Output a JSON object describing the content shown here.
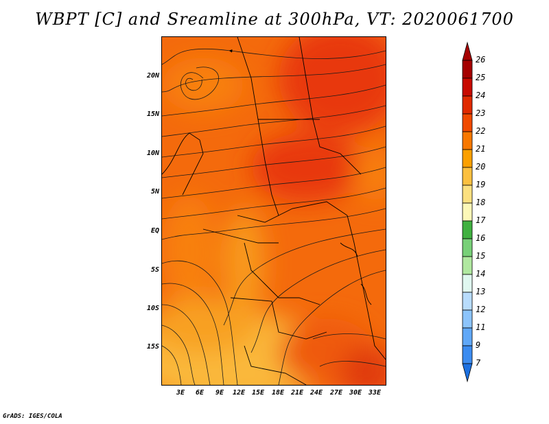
{
  "title": "WBPT [C] and Sreamline at 300hPa, VT: 2020061700",
  "credit": "GrADS: IGES/COLA",
  "lat_labels": [
    "20N",
    "15N",
    "10N",
    "5N",
    "EQ",
    "5S",
    "10S",
    "15S"
  ],
  "lon_labels": [
    "3E",
    "6E",
    "9E",
    "12E",
    "15E",
    "18E",
    "21E",
    "24E",
    "27E",
    "30E",
    "33E"
  ],
  "colorbar": {
    "labels": [
      "26",
      "25",
      "24",
      "23",
      "22",
      "21",
      "20",
      "19",
      "18",
      "17",
      "16",
      "15",
      "14",
      "13",
      "12",
      "11",
      "9",
      "7"
    ],
    "colors": [
      "#a50000",
      "#c80a00",
      "#e02a00",
      "#f04a00",
      "#f87800",
      "#fca000",
      "#fcc040",
      "#fce080",
      "#fcf8b8",
      "#40b040",
      "#78d078",
      "#b0e8a0",
      "#e0f8f0",
      "#b8dcfc",
      "#8cc4fc",
      "#60a8f8",
      "#3c8cf0",
      "#1c70e0"
    ]
  }
}
